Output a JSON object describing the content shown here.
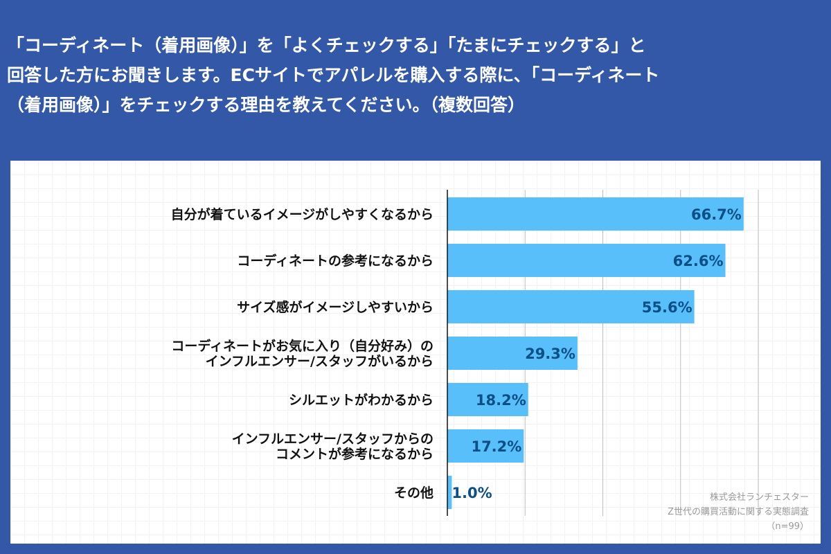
{
  "title": {
    "lines": [
      "「コーディネート（着用画像）」を「よくチェックする」「たまにチェックする」と",
      "回答した方にお聞きします。ECサイトでアパレルを購入する際に、「コーディネート",
      "（着用画像）」をチェックする理由を教えてください。（複数回答）"
    ]
  },
  "colors": {
    "background": "#3358A8",
    "bar": "#58BFFA",
    "label": "#0A4F86"
  },
  "chart_data": {
    "type": "bar",
    "orientation": "horizontal",
    "title": "「コーディネート（着用画像）」をチェックする理由",
    "categories": [
      [
        "自分が着ているイメージがしやすくなるから"
      ],
      [
        "コーディネートの参考になるから"
      ],
      [
        "サイズ感がイメージしやすいから"
      ],
      [
        "コーディネートがお気に入り（自分好み）の",
        "インフルエンサー/スタッフがいるから"
      ],
      [
        "シルエットがわかるから"
      ],
      [
        "インフルエンサー/スタッフからの",
        "コメントが参考になるから"
      ],
      [
        "その他"
      ]
    ],
    "values": [
      66.7,
      62.6,
      55.6,
      29.3,
      18.2,
      17.2,
      1.0
    ],
    "value_labels": [
      "66.7%",
      "62.6%",
      "55.6%",
      "29.3%",
      "18.2%",
      "17.2%",
      "1.0%"
    ],
    "xlim": [
      0,
      70
    ],
    "grid": true,
    "unit": "%"
  },
  "source": {
    "company": "株式会社ランチェスター",
    "survey": "Z世代の購買活動に関する実態調査",
    "sample": "（n=99）"
  }
}
